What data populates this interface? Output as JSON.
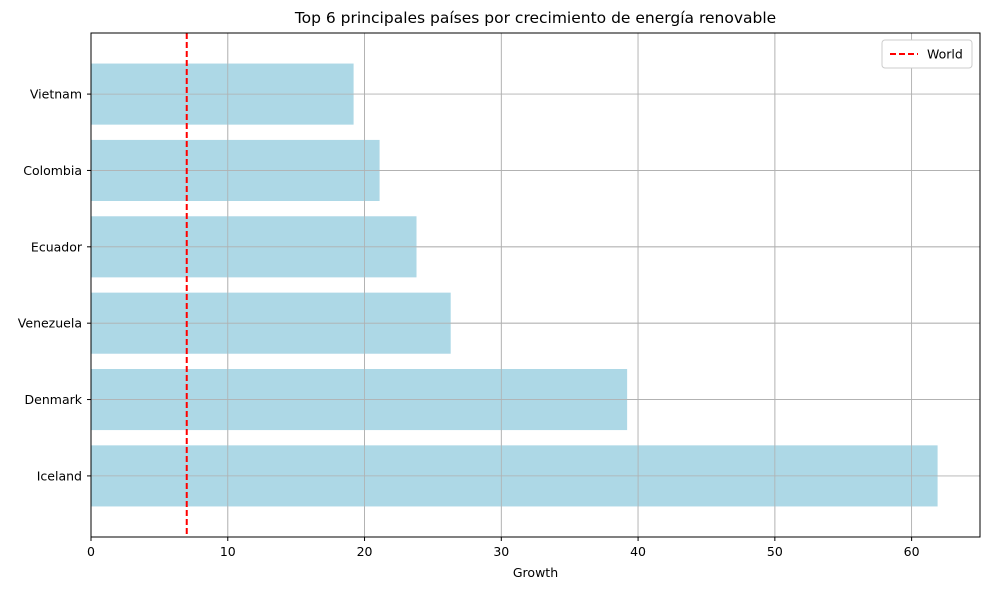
{
  "chart_data": {
    "type": "bar",
    "orientation": "horizontal",
    "title": "Top 6 principales países por crecimiento de energía renovable",
    "xlabel": "Growth",
    "ylabel": "",
    "categories": [
      "Iceland",
      "Denmark",
      "Venezuela",
      "Ecuador",
      "Colombia",
      "Vietnam"
    ],
    "values": [
      61.9,
      39.2,
      26.3,
      23.8,
      21.1,
      19.2
    ],
    "xlim": [
      0,
      65
    ],
    "xticks": [
      0,
      10,
      20,
      30,
      40,
      50,
      60
    ],
    "grid": true,
    "bar_color": "#add8e6",
    "reference_line": {
      "name": "World",
      "value": 7.0,
      "color": "#ff0000",
      "style": "dashed"
    },
    "legend": {
      "placement": "top-right",
      "entries": [
        "World"
      ]
    }
  }
}
